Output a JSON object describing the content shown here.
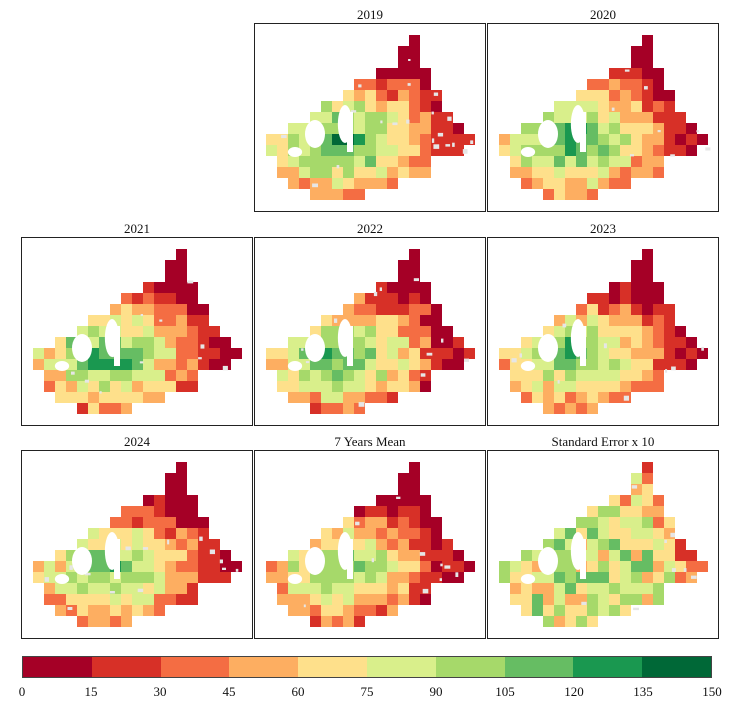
{
  "panels": [
    {
      "title": "2019"
    },
    {
      "title": "2020"
    },
    {
      "title": "2021"
    },
    {
      "title": "2022"
    },
    {
      "title": "2023"
    },
    {
      "title": "2024"
    },
    {
      "title": "7 Years Mean"
    },
    {
      "title": "Standard Error x 10"
    }
  ],
  "legend": {
    "colors": [
      "#a50026",
      "#d73027",
      "#f46d43",
      "#fdae61",
      "#fee08b",
      "#d9ef8b",
      "#a6d96a",
      "#66bd63",
      "#1a9850",
      "#006837"
    ],
    "ticks": [
      "0",
      "15",
      "30",
      "45",
      "60",
      "75",
      "90",
      "105",
      "120",
      "135",
      "150"
    ]
  },
  "no_data_color": "#e6e6e6"
}
